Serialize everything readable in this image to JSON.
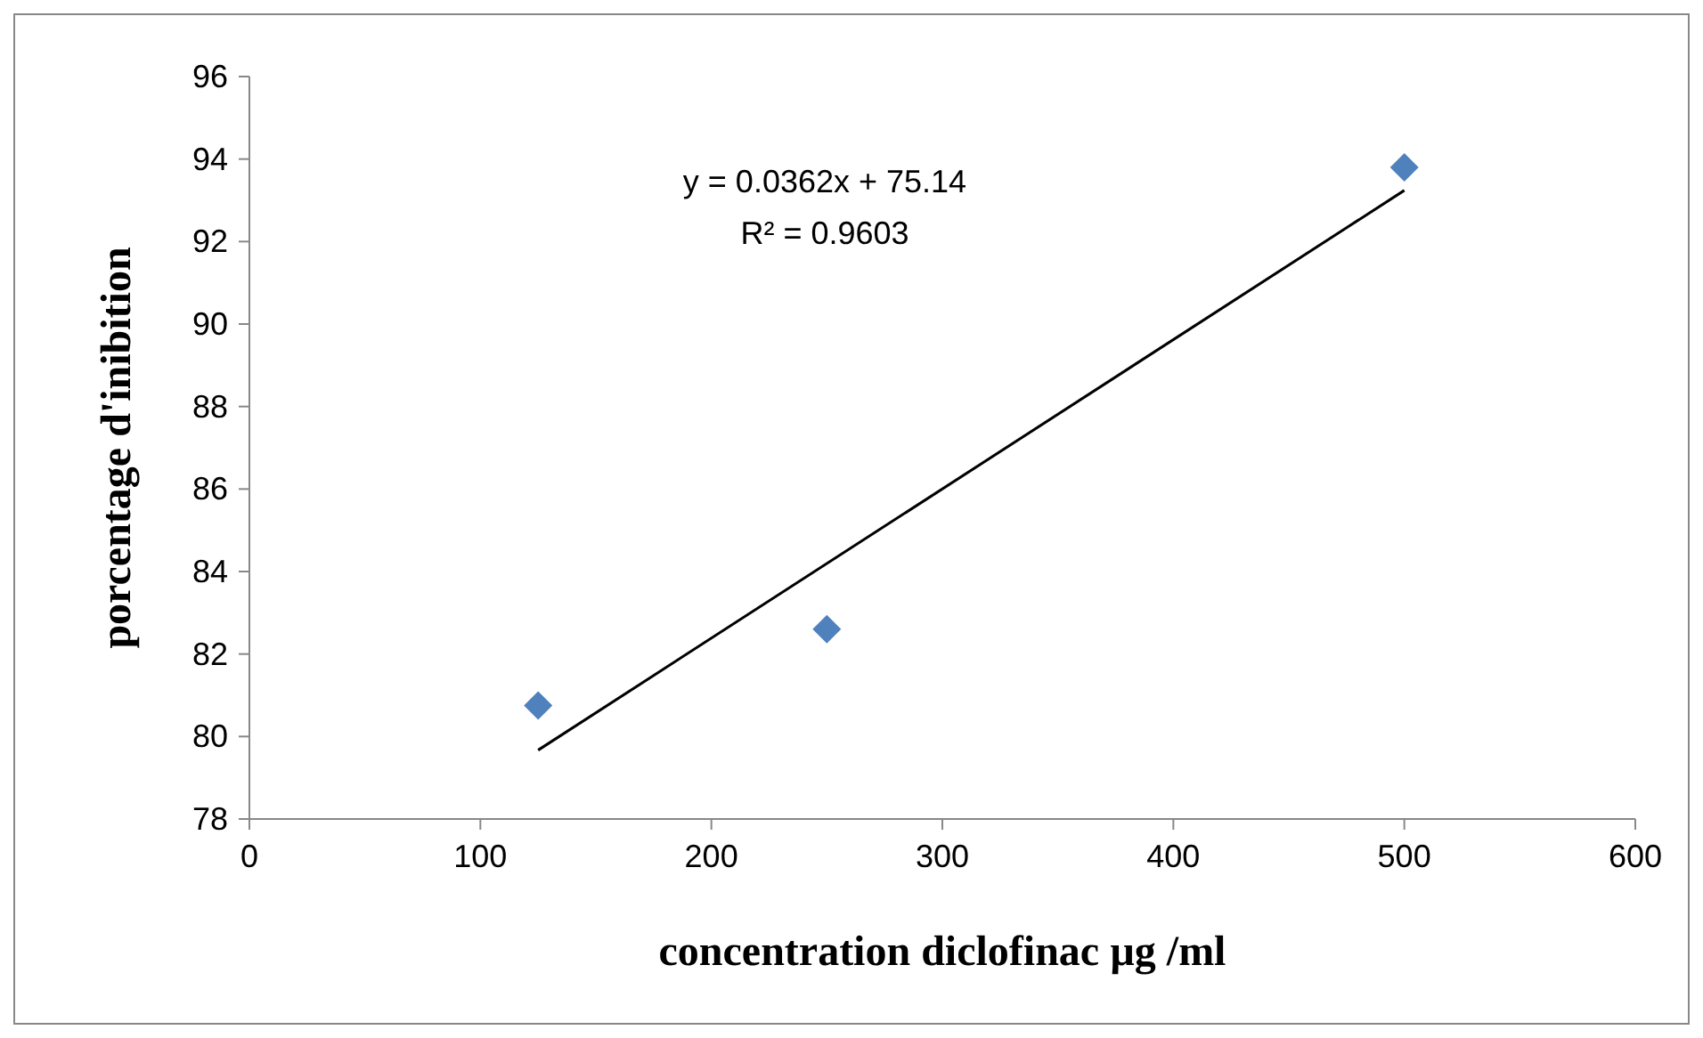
{
  "chart_data": {
    "type": "scatter",
    "xlabel": "concentration diclofinac µg /ml",
    "ylabel": "porcentage d'inibition",
    "xlim": [
      0,
      600
    ],
    "xticks": [
      0,
      100,
      200,
      300,
      400,
      500,
      600
    ],
    "ylim": [
      78,
      96
    ],
    "yticks": [
      78,
      80,
      82,
      84,
      86,
      88,
      90,
      92,
      94,
      96
    ],
    "grid": false,
    "marker": "diamond",
    "annotations": [
      "y = 0.0362x + 75.14",
      "R² = 0.9603"
    ],
    "series": [
      {
        "color": "#4f81bd",
        "x": [
          125,
          250,
          500
        ],
        "values": [
          80.75,
          82.6,
          93.8
        ]
      },
      {
        "type": "line",
        "color": "#000000",
        "marker": "none",
        "x": [
          125,
          500
        ],
        "values": [
          79.67,
          93.24
        ]
      }
    ]
  }
}
